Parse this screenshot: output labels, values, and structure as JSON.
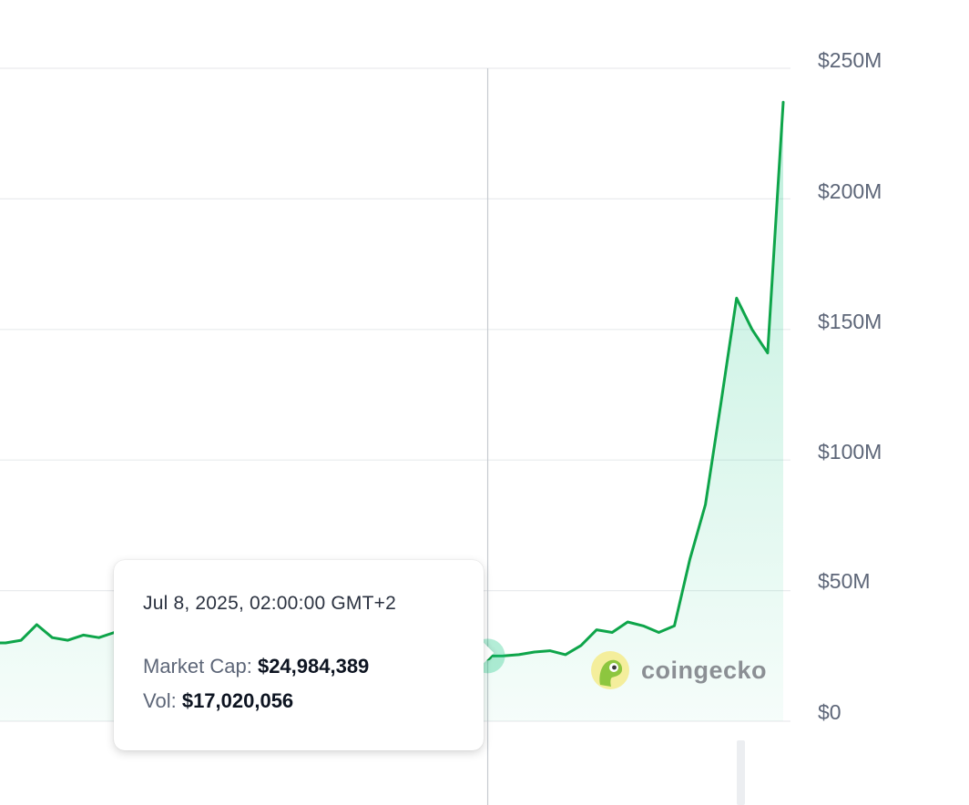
{
  "chart_data": {
    "type": "area",
    "y_axis": {
      "position": "right",
      "ticks": [
        "$250M",
        "$200M",
        "$150M",
        "$100M",
        "$50M",
        "$0"
      ],
      "ylim": [
        0,
        250
      ]
    },
    "grid": true,
    "series": [
      {
        "unit": "USD millions",
        "values": [
          31,
          30,
          30,
          31,
          37,
          32,
          31,
          33,
          32,
          34,
          35,
          36,
          34,
          33,
          32,
          30,
          31,
          29,
          30,
          28,
          29,
          30,
          27,
          28,
          26,
          25.5,
          25,
          25,
          24,
          25,
          25,
          24,
          25.5,
          24.98,
          25,
          25.5,
          26.5,
          27,
          25.5,
          29,
          35,
          34,
          38,
          36.5,
          34,
          36.5,
          62,
          83,
          122,
          162,
          150,
          141,
          237
        ],
        "color": "#16c784"
      }
    ],
    "hover_index": 33
  },
  "tooltip": {
    "date": "Jul 8, 2025, 02:00:00 GMT+2",
    "market_cap_label": "Market Cap:",
    "market_cap_value": "$24,984,389",
    "vol_label": "Vol:",
    "vol_value": "$17,020,056"
  },
  "brand": {
    "name": "coingecko",
    "icon": "gecko-logo-icon"
  },
  "colors": {
    "line": "#0ea54a",
    "fill": "#16c784",
    "grid": "#e9ebee",
    "crosshair": "#c6cad0",
    "axis_text": "#5d6678"
  }
}
